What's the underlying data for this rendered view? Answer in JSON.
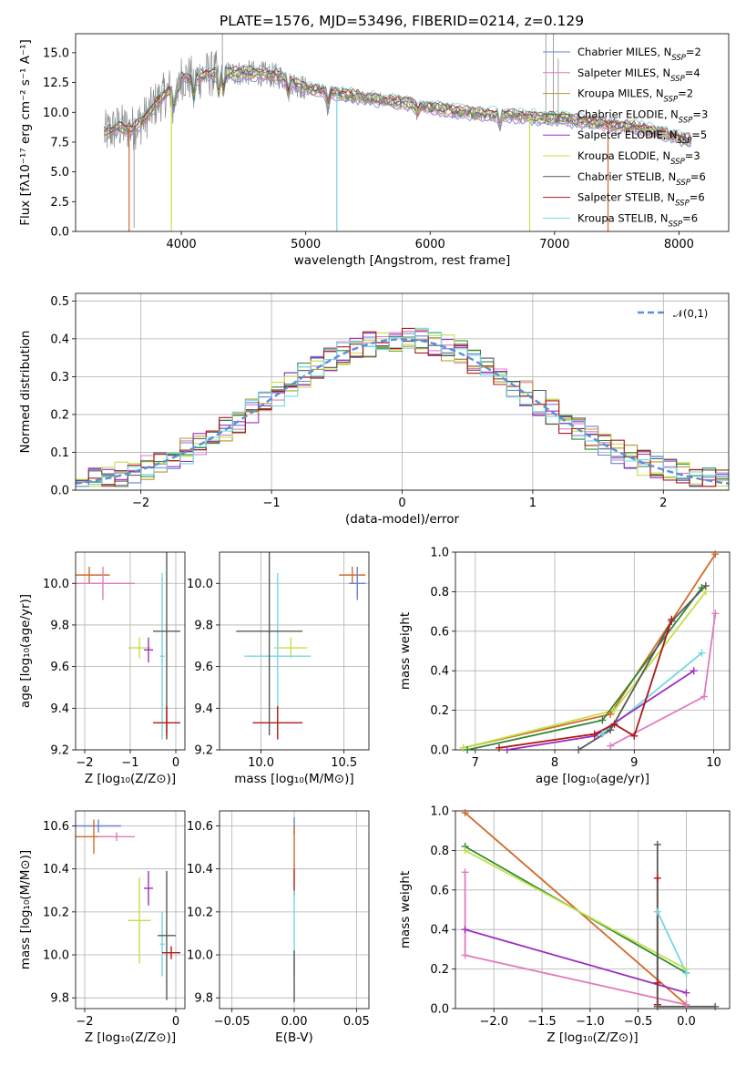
{
  "title": "PLATE=1576, MJD=53496, FIBERID=0214, z=0.129",
  "colors": {
    "blue": "#6a80d8",
    "pink": "#e07cc0",
    "olive": "#b8982c",
    "green": "#2f8a33",
    "purple": "#9b2fc0",
    "lime": "#c2e04a",
    "gray": "#585858",
    "red": "#b01818",
    "cyan": "#74d7e2",
    "orange": "#d26a2a",
    "spec_gray": "#8a8a8a",
    "normal": "#5b8fd6"
  },
  "chart_data": [
    {
      "id": "spectrum",
      "type": "line",
      "xlabel": "wavelength [Angstrom, rest frame]",
      "ylabel": "Flux [fλ10⁻¹⁷ erg cm⁻² s⁻¹ A⁻¹]",
      "xlim": [
        3150,
        8400
      ],
      "ylim": [
        0,
        16.6
      ],
      "xticks": [
        4000,
        5000,
        6000,
        7000,
        8000
      ],
      "yticks": [
        0.0,
        2.5,
        5.0,
        7.5,
        10.0,
        12.5,
        15.0
      ],
      "legend_position": "upper-right",
      "continuum": {
        "x": [
          3380,
          3500,
          3600,
          3700,
          3800,
          3900,
          4000,
          4100,
          4200,
          4400,
          4600,
          4800,
          5000,
          5200,
          5500,
          5800,
          6000,
          6200,
          6400,
          6600,
          6800,
          7000,
          7200,
          7400,
          7600,
          7800,
          8000,
          8100
        ],
        "y": [
          8.2,
          8.8,
          8.6,
          9.4,
          10.8,
          11.8,
          13.0,
          12.8,
          13.2,
          13.3,
          13.3,
          13.0,
          12.0,
          11.7,
          11.2,
          10.8,
          10.4,
          10.1,
          9.9,
          9.8,
          9.6,
          9.5,
          9.3,
          9.0,
          8.8,
          8.4,
          7.9,
          7.6
        ]
      },
      "series": [
        {
          "name": "Chabrier MILES, N_SSP=2",
          "color": "blue"
        },
        {
          "name": "Salpeter MILES, N_SSP=4",
          "color": "pink"
        },
        {
          "name": "Kroupa MILES, N_SSP=2",
          "color": "olive"
        },
        {
          "name": "Chabrier ELODIE, N_SSP=3",
          "color": "green"
        },
        {
          "name": "Salpeter ELODIE, N_SSP=5",
          "color": "purple"
        },
        {
          "name": "Kroupa ELODIE, N_SSP=3",
          "color": "lime"
        },
        {
          "name": "Chabrier STELIB, N_SSP=6",
          "color": "gray"
        },
        {
          "name": "Salpeter STELIB, N_SSP=6",
          "color": "red"
        },
        {
          "name": "Kroupa STELIB, N_SSP=6",
          "color": "cyan"
        }
      ]
    },
    {
      "id": "residuals",
      "type": "line",
      "xlabel": "(data-model)/error",
      "ylabel": "Normed distribution",
      "xlim": [
        -2.5,
        2.5
      ],
      "ylim": [
        0,
        0.52
      ],
      "xticks": [
        -2,
        -1,
        0,
        1,
        2
      ],
      "yticks": [
        0.0,
        0.1,
        0.2,
        0.3,
        0.4,
        0.5
      ],
      "legend": "𝒩(0,1)",
      "legend_position": "upper-right",
      "grid": true,
      "histogram_bin_width": 0.1
    },
    {
      "id": "age_vs_Z",
      "type": "scatter",
      "xlabel": "Z [log₁₀(Z/Z⊙)]",
      "ylabel": "age [log₁₀(age/yr)]",
      "xlim": [
        -2.2,
        0.2
      ],
      "ylim": [
        9.2,
        10.15
      ],
      "xticks": [
        -2,
        -1,
        0
      ],
      "yticks": [
        9.2,
        9.4,
        9.6,
        9.8,
        10.0
      ],
      "grid": true,
      "points": [
        {
          "x": -1.9,
          "y": 10.04,
          "xerr": 0.45,
          "yerr": 0.04,
          "color": "orange"
        },
        {
          "x": -1.6,
          "y": 10.0,
          "xerr": 0.7,
          "yerr": 0.08,
          "color": "pink"
        },
        {
          "x": -0.8,
          "y": 9.69,
          "xerr": 0.25,
          "yerr": 0.05,
          "color": "lime"
        },
        {
          "x": -0.6,
          "y": 9.68,
          "xerr": 0.1,
          "yerr": 0.06,
          "color": "purple"
        },
        {
          "x": -0.3,
          "y": 9.65,
          "xerr": 0.05,
          "yerr": 0.4,
          "color": "cyan"
        },
        {
          "x": -0.2,
          "y": 9.77,
          "xerr": 0.3,
          "yerr": 0.5,
          "color": "gray"
        },
        {
          "x": -0.2,
          "y": 9.33,
          "xerr": 0.3,
          "yerr": 0.08,
          "color": "red"
        }
      ]
    },
    {
      "id": "age_vs_mass",
      "type": "scatter",
      "xlabel": "mass [log₁₀(M/M⊙)]",
      "ylabel": "",
      "xlim": [
        9.75,
        10.65
      ],
      "ylim": [
        9.2,
        10.15
      ],
      "xticks": [
        10.0,
        10.5
      ],
      "yticks": [
        9.2,
        9.4,
        9.6,
        9.8,
        10.0
      ],
      "grid": true,
      "points": [
        {
          "x": 10.55,
          "y": 10.04,
          "xerr": 0.08,
          "yerr": 0.04,
          "color": "orange"
        },
        {
          "x": 10.58,
          "y": 10.0,
          "xerr": 0.05,
          "yerr": 0.08,
          "color": "blue"
        },
        {
          "x": 10.18,
          "y": 9.69,
          "xerr": 0.1,
          "yerr": 0.05,
          "color": "lime"
        },
        {
          "x": 10.1,
          "y": 9.65,
          "xerr": 0.2,
          "yerr": 0.4,
          "color": "cyan"
        },
        {
          "x": 10.05,
          "y": 9.77,
          "xerr": 0.2,
          "yerr": 0.5,
          "color": "gray"
        },
        {
          "x": 10.1,
          "y": 9.33,
          "xerr": 0.15,
          "yerr": 0.08,
          "color": "red"
        }
      ]
    },
    {
      "id": "weight_vs_age",
      "type": "line",
      "xlabel": "age [log₁₀(age/yr)]",
      "ylabel": "mass weight",
      "xlim": [
        6.75,
        10.2
      ],
      "ylim": [
        0,
        1.0
      ],
      "xticks": [
        7,
        8,
        9,
        10
      ],
      "yticks": [
        0.0,
        0.2,
        0.4,
        0.6,
        0.8,
        1.0
      ],
      "grid": true,
      "series": [
        {
          "color": "orange",
          "x": [
            6.85,
            8.7,
            10.02
          ],
          "y": [
            0.01,
            0.18,
            0.99
          ]
        },
        {
          "color": "lime",
          "x": [
            6.85,
            8.75,
            9.9
          ],
          "y": [
            0.01,
            0.2,
            0.8
          ]
        },
        {
          "color": "green",
          "x": [
            6.9,
            8.6,
            9.85
          ],
          "y": [
            0.0,
            0.15,
            0.82
          ]
        },
        {
          "color": "cyan",
          "x": [
            8.6,
            9.85
          ],
          "y": [
            0.08,
            0.49
          ]
        },
        {
          "color": "pink",
          "x": [
            8.7,
            9.88,
            10.02
          ],
          "y": [
            0.02,
            0.27,
            0.69
          ]
        },
        {
          "color": "purple",
          "x": [
            7.4,
            8.5,
            9.75
          ],
          "y": [
            0.0,
            0.07,
            0.4
          ]
        },
        {
          "color": "gray",
          "x": [
            8.3,
            8.7,
            9.47,
            9.9
          ],
          "y": [
            0.0,
            0.1,
            0.65,
            0.83
          ]
        },
        {
          "color": "red",
          "x": [
            7.3,
            8.5,
            8.75,
            9.0,
            9.47
          ],
          "y": [
            0.01,
            0.08,
            0.13,
            0.07,
            0.66
          ]
        }
      ]
    },
    {
      "id": "mass_vs_Z",
      "type": "scatter",
      "xlabel": "Z [log₁₀(Z/Z⊙)]",
      "ylabel": "mass [log₁₀(M/M⊙)]",
      "xlim": [
        -2.2,
        0.2
      ],
      "ylim": [
        9.75,
        10.67
      ],
      "xticks": [
        -2,
        0
      ],
      "yticks": [
        9.8,
        10.0,
        10.2,
        10.4,
        10.6
      ],
      "grid": true,
      "points": [
        {
          "x": -1.7,
          "y": 10.6,
          "xerr": 0.5,
          "yerr": 0.03,
          "color": "blue"
        },
        {
          "x": -1.8,
          "y": 10.55,
          "xerr": 0.4,
          "yerr": 0.08,
          "color": "orange"
        },
        {
          "x": -1.3,
          "y": 10.55,
          "xerr": 0.4,
          "yerr": 0.02,
          "color": "pink"
        },
        {
          "x": -0.8,
          "y": 10.16,
          "xerr": 0.25,
          "yerr": 0.2,
          "color": "lime"
        },
        {
          "x": -0.6,
          "y": 10.31,
          "xerr": 0.1,
          "yerr": 0.08,
          "color": "purple"
        },
        {
          "x": -0.3,
          "y": 10.05,
          "xerr": 0.05,
          "yerr": 0.15,
          "color": "cyan"
        },
        {
          "x": -0.2,
          "y": 10.09,
          "xerr": 0.2,
          "yerr": 0.3,
          "color": "gray"
        },
        {
          "x": -0.1,
          "y": 10.01,
          "xerr": 0.2,
          "yerr": 0.03,
          "color": "red"
        }
      ]
    },
    {
      "id": "mass_vs_EBV",
      "type": "scatter",
      "xlabel": "E(B-V)",
      "ylabel": "",
      "xlim": [
        -0.06,
        0.06
      ],
      "ylim": [
        9.75,
        10.67
      ],
      "xticks": [
        -0.05,
        0.0,
        0.05
      ],
      "yticks": [
        9.8,
        10.0,
        10.2,
        10.4,
        10.6
      ],
      "grid": true,
      "points": [
        {
          "x": 0.0,
          "y": 10.6,
          "xerr": 0,
          "yerr": 0.04,
          "color": "blue"
        },
        {
          "x": 0.0,
          "y": 10.5,
          "xerr": 0,
          "yerr": 0.1,
          "color": "orange"
        },
        {
          "x": 0.0,
          "y": 10.34,
          "xerr": 0,
          "yerr": 0.06,
          "color": "red"
        },
        {
          "x": 0.0,
          "y": 10.1,
          "xerr": 0,
          "yerr": 0.2,
          "color": "cyan"
        },
        {
          "x": 0.0,
          "y": 9.9,
          "xerr": 0,
          "yerr": 0.12,
          "color": "gray"
        }
      ]
    },
    {
      "id": "weight_vs_Z",
      "type": "line",
      "xlabel": "Z [log₁₀(Z/Z⊙)]",
      "ylabel": "mass weight",
      "xlim": [
        -2.4,
        0.45
      ],
      "ylim": [
        0,
        1.0
      ],
      "xticks": [
        -2.0,
        -1.5,
        -1.0,
        -0.5,
        0.0
      ],
      "yticks": [
        0.0,
        0.2,
        0.4,
        0.6,
        0.8,
        1.0
      ],
      "grid": true,
      "series": [
        {
          "color": "orange",
          "x": [
            -2.3,
            0.0
          ],
          "y": [
            0.99,
            0.02
          ]
        },
        {
          "color": "green",
          "x": [
            -2.3,
            0.0
          ],
          "y": [
            0.82,
            0.18
          ]
        },
        {
          "color": "lime",
          "x": [
            -2.3,
            0.0
          ],
          "y": [
            0.8,
            0.2
          ]
        },
        {
          "color": "purple",
          "x": [
            -2.3,
            0.0
          ],
          "y": [
            0.4,
            0.08
          ]
        },
        {
          "color": "pink",
          "x": [
            -2.3,
            -2.3,
            0.0
          ],
          "y": [
            0.69,
            0.27,
            0.02
          ]
        },
        {
          "color": "cyan",
          "x": [
            -0.3,
            -0.3,
            0.0
          ],
          "y": [
            0.02,
            0.49,
            0.18
          ]
        },
        {
          "color": "red",
          "x": [
            -0.3,
            -0.3,
            -0.3
          ],
          "y": [
            0.66,
            0.02,
            0.13
          ]
        },
        {
          "color": "gray",
          "x": [
            -0.3,
            -0.3,
            0.3
          ],
          "y": [
            0.83,
            0.01,
            0.01
          ]
        }
      ]
    }
  ]
}
